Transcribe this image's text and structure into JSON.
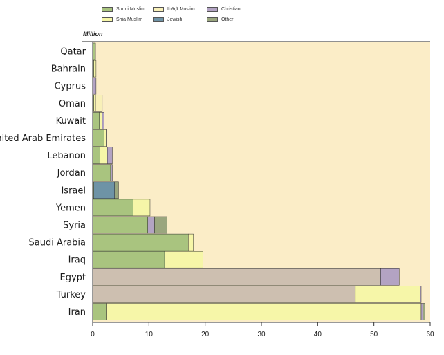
{
  "chart_data": {
    "type": "bar",
    "orientation": "horizontal",
    "stacked": true,
    "title": "",
    "xlabel": "",
    "ylabel": "",
    "unit_label": "Million",
    "xlim": [
      0,
      60
    ],
    "x_ticks": [
      "0",
      "10",
      "20",
      "30",
      "40",
      "50",
      "60"
    ],
    "grid": false,
    "legend_position": "top",
    "categories": [
      "Qatar",
      "Bahrain",
      "Cyprus",
      "Oman",
      "Kuwait",
      "United Arab Emirates",
      "Lebanon",
      "Jordan",
      "Israel",
      "Yemen",
      "Syria",
      "Saudi Arabia",
      "Iraq",
      "Egypt",
      "Turkey",
      "Iran"
    ],
    "legend": [
      {
        "key": "sunni",
        "label": "Sunni Muslim",
        "color": "#a9c47f"
      },
      {
        "key": "shia",
        "label": "Shia Muslim",
        "color": "#f6f6a8"
      },
      {
        "key": "ibadi",
        "label": "Ibāḍī Muslim",
        "color": "#f8f0b8"
      },
      {
        "key": "jewish",
        "label": "Jewish",
        "color": "#6e93a6"
      },
      {
        "key": "christian",
        "label": "Christian",
        "color": "#b3a3c3"
      },
      {
        "key": "other",
        "label": "Other",
        "color": "#9aa67e"
      }
    ],
    "series": [
      {
        "key": "sunni",
        "values": [
          0.5,
          0.2,
          0.0,
          0.2,
          1.2,
          2.0,
          1.3,
          3.2,
          0.2,
          7.2,
          9.8,
          17.0,
          12.8,
          51.2,
          46.7,
          2.4
        ]
      },
      {
        "key": "shia",
        "values": [
          0.0,
          0.4,
          0.0,
          0.3,
          0.5,
          0.4,
          1.3,
          0.0,
          0.0,
          3.0,
          0.0,
          0.9,
          6.8,
          0.0,
          11.5,
          56.0
        ]
      },
      {
        "key": "ibadi",
        "values": [
          0.0,
          0.0,
          0.0,
          1.2,
          0.0,
          0.0,
          0.0,
          0.0,
          0.0,
          0.0,
          0.0,
          0.0,
          0.0,
          0.0,
          0.0,
          0.0
        ]
      },
      {
        "key": "jewish",
        "values": [
          0.0,
          0.0,
          0.0,
          0.0,
          0.0,
          0.0,
          0.0,
          0.0,
          3.7,
          0.0,
          0.0,
          0.0,
          0.0,
          0.0,
          0.0,
          0.0
        ]
      },
      {
        "key": "christian",
        "values": [
          0.0,
          0.0,
          0.6,
          0.0,
          0.3,
          0.1,
          0.9,
          0.3,
          0.1,
          0.0,
          1.2,
          0.0,
          0.0,
          3.3,
          0.2,
          0.3
        ]
      },
      {
        "key": "other",
        "values": [
          0.0,
          0.0,
          0.0,
          0.0,
          0.0,
          0.0,
          0.0,
          0.0,
          0.6,
          0.0,
          2.2,
          0.0,
          0.0,
          0.0,
          0.0,
          0.4
        ]
      }
    ],
    "base_color_overrides": {
      "Egypt": "#cdbfb0",
      "Turkey": "#cdbfb0"
    }
  }
}
